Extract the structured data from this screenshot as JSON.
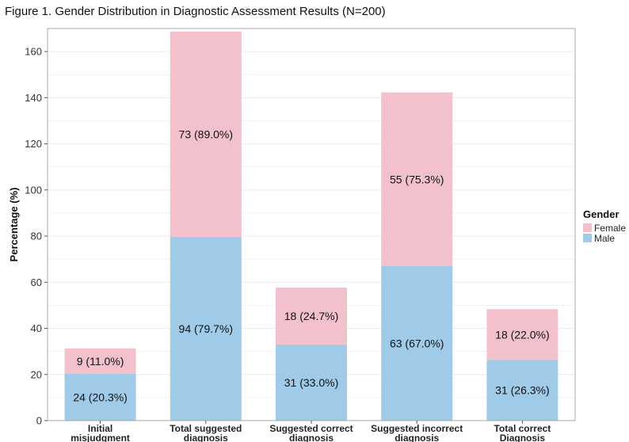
{
  "title": "Figure 1. Gender Distribution in Diagnostic Assessment Results (N=200)",
  "colors": {
    "female": "#F2C1CC",
    "male": "#9FCBE8",
    "grid": "#EBEBEB",
    "panel_border": "#AAAAAA"
  },
  "chart_data": {
    "type": "bar",
    "stacked": true,
    "title": "Figure 1. Gender Distribution in Diagnostic Assessment Results (N=200)",
    "xlabel": "",
    "ylabel": "Percentage (%)",
    "ylim": [
      0,
      170
    ],
    "yticks": [
      0,
      20,
      40,
      60,
      80,
      100,
      120,
      140,
      160
    ],
    "grid": true,
    "legend_position": "right",
    "legend_title": "Gender",
    "categories": [
      [
        "Initial",
        "misjudgment"
      ],
      [
        "Total suggested",
        "diagnosis"
      ],
      [
        "Suggested correct",
        "diagnosis"
      ],
      [
        "Suggested incorrect",
        "diagnosis"
      ],
      [
        "Total correct",
        "Diagnosis"
      ]
    ],
    "series": [
      {
        "name": "Male",
        "color": "#9FCBE8",
        "values": [
          20.3,
          79.7,
          33.0,
          67.0,
          26.3
        ],
        "labels": [
          "24 (20.3%)",
          "94 (79.7%)",
          "31 (33.0%)",
          "63 (67.0%)",
          "31 (26.3%)"
        ]
      },
      {
        "name": "Female",
        "color": "#F2C1CC",
        "values": [
          11.0,
          89.0,
          24.7,
          75.3,
          22.0
        ],
        "labels": [
          "9 (11.0%)",
          "73 (89.0%)",
          "18 (24.7%)",
          "55 (75.3%)",
          "18 (22.0%)"
        ]
      }
    ],
    "legend": [
      {
        "name": "Female",
        "color": "#F2C1CC"
      },
      {
        "name": "Male",
        "color": "#9FCBE8"
      }
    ]
  }
}
